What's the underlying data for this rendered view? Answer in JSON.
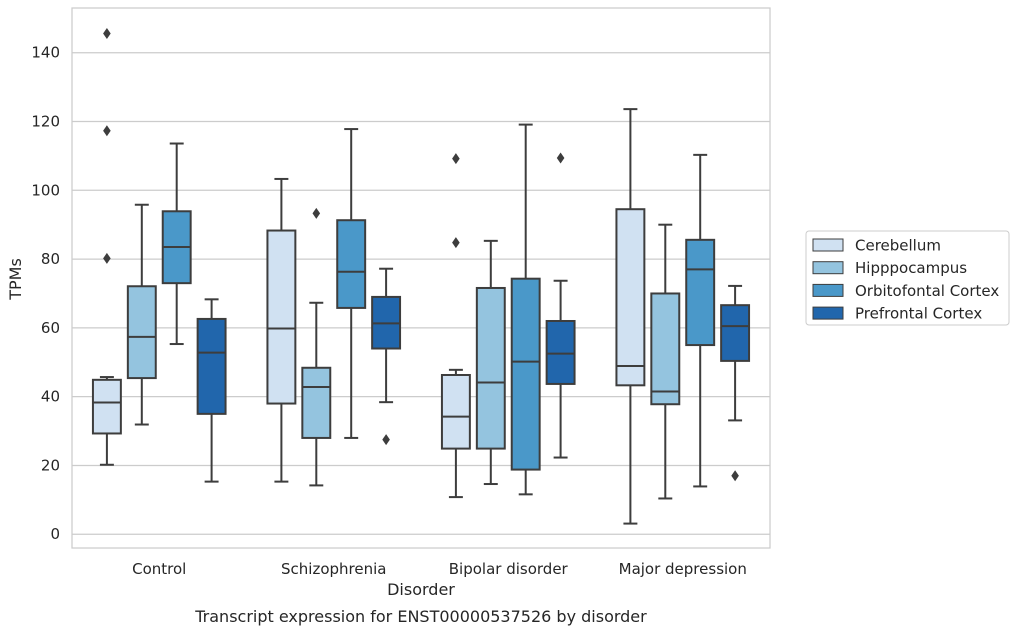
{
  "chart_data": {
    "type": "box",
    "xlabel": "Disorder",
    "ylabel": "TPMs",
    "caption": "Transcript expression for ENST00000537526 by disorder",
    "ylim": [
      -4,
      153
    ],
    "yticks": [
      0,
      20,
      40,
      60,
      80,
      100,
      120,
      140
    ],
    "grid": "horizontal",
    "legend_position": "right",
    "categories": [
      "Control",
      "Schizophrenia",
      "Bipolar disorder",
      "Major depression"
    ],
    "series": [
      {
        "name": "Cerebellum",
        "color": "#d0e1f2",
        "boxes": [
          {
            "min": 20.2,
            "q1": 29.3,
            "median": 38.3,
            "q3": 44.9,
            "max": 45.7,
            "outliers": [
              80.2,
              117.3,
              145.6
            ]
          },
          {
            "min": 15.3,
            "q1": 38.0,
            "median": 59.8,
            "q3": 88.3,
            "max": 103.3,
            "outliers": []
          },
          {
            "min": 10.8,
            "q1": 24.9,
            "median": 34.2,
            "q3": 46.3,
            "max": 47.8,
            "outliers": [
              84.8,
              109.2
            ]
          },
          {
            "min": 3.1,
            "q1": 43.3,
            "median": 48.9,
            "q3": 94.5,
            "max": 123.6,
            "outliers": []
          }
        ]
      },
      {
        "name": "Hipppocampus",
        "color": "#94c4df",
        "boxes": [
          {
            "min": 31.9,
            "q1": 45.4,
            "median": 57.4,
            "q3": 72.1,
            "max": 95.8,
            "outliers": []
          },
          {
            "min": 14.2,
            "q1": 28.0,
            "median": 42.8,
            "q3": 48.4,
            "max": 67.3,
            "outliers": [
              93.3
            ]
          },
          {
            "min": 14.6,
            "q1": 24.9,
            "median": 44.1,
            "q3": 71.6,
            "max": 85.3,
            "outliers": []
          },
          {
            "min": 10.4,
            "q1": 37.8,
            "median": 41.5,
            "q3": 70.0,
            "max": 90.0,
            "outliers": []
          }
        ]
      },
      {
        "name": "Orbitofontal Cortex",
        "color": "#4a98c9",
        "boxes": [
          {
            "min": 55.3,
            "q1": 73.0,
            "median": 83.5,
            "q3": 93.9,
            "max": 113.6,
            "outliers": []
          },
          {
            "min": 28.0,
            "q1": 65.8,
            "median": 76.3,
            "q3": 91.3,
            "max": 117.8,
            "outliers": []
          },
          {
            "min": 11.6,
            "q1": 18.8,
            "median": 50.2,
            "q3": 74.3,
            "max": 119.1,
            "outliers": []
          },
          {
            "min": 13.9,
            "q1": 55.0,
            "median": 77.0,
            "q3": 85.6,
            "max": 110.3,
            "outliers": []
          }
        ]
      },
      {
        "name": "Prefrontal Cortex",
        "color": "#2166ac",
        "boxes": [
          {
            "min": 15.3,
            "q1": 35.0,
            "median": 52.8,
            "q3": 62.6,
            "max": 68.3,
            "outliers": []
          },
          {
            "min": 38.4,
            "q1": 54.0,
            "median": 61.3,
            "q3": 69.0,
            "max": 77.2,
            "outliers": [
              27.5
            ]
          },
          {
            "min": 22.3,
            "q1": 43.7,
            "median": 52.5,
            "q3": 62.0,
            "max": 73.7,
            "outliers": [
              109.4
            ]
          },
          {
            "min": 33.1,
            "q1": 50.4,
            "median": 60.5,
            "q3": 66.6,
            "max": 72.2,
            "outliers": [
              17.0
            ]
          }
        ]
      }
    ]
  }
}
